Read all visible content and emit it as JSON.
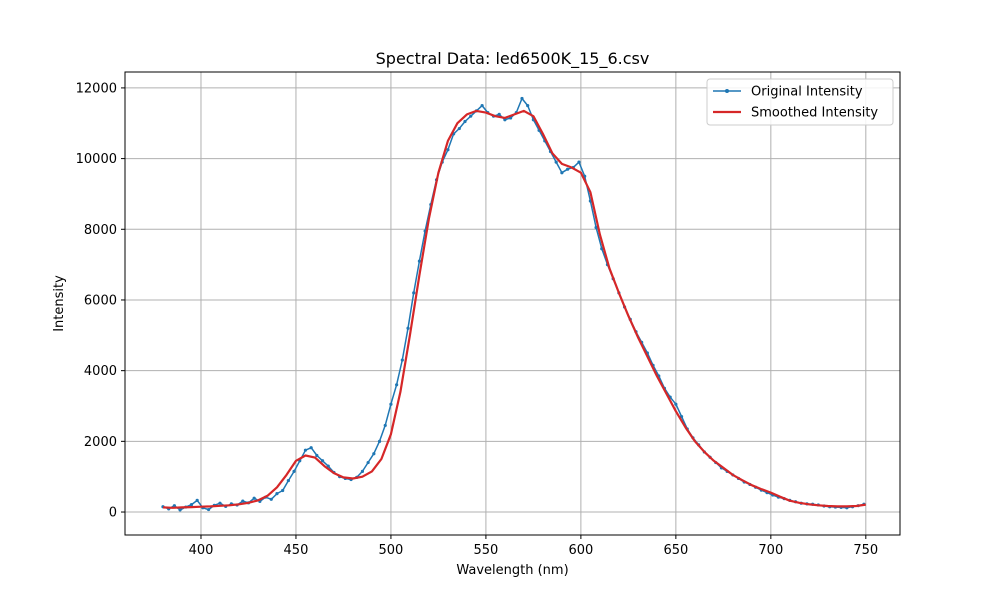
{
  "chart_data": {
    "type": "line",
    "title": "Spectral Data: led6500K_15_6.csv",
    "xlabel": "Wavelength (nm)",
    "ylabel": "Intensity",
    "xlim": [
      360,
      768
    ],
    "ylim": [
      -650,
      12450
    ],
    "xticks": [
      400,
      450,
      500,
      550,
      600,
      650,
      700,
      750
    ],
    "yticks": [
      0,
      2000,
      4000,
      6000,
      8000,
      10000,
      12000
    ],
    "grid": true,
    "legend_position": "top-right",
    "series": [
      {
        "name": "Original Intensity",
        "color": "#1f77b4",
        "style": "line-with-markers",
        "x": [
          380,
          383,
          386,
          389,
          392,
          395,
          398,
          401,
          404,
          407,
          410,
          413,
          416,
          419,
          422,
          425,
          428,
          431,
          434,
          437,
          440,
          443,
          446,
          449,
          452,
          455,
          458,
          461,
          464,
          467,
          470,
          473,
          476,
          479,
          482,
          485,
          488,
          491,
          494,
          497,
          500,
          503,
          506,
          509,
          512,
          515,
          518,
          521,
          524,
          527,
          530,
          533,
          536,
          539,
          542,
          545,
          548,
          551,
          554,
          557,
          560,
          563,
          566,
          569,
          572,
          575,
          578,
          581,
          584,
          587,
          590,
          593,
          596,
          599,
          602,
          605,
          608,
          611,
          614,
          617,
          620,
          623,
          626,
          629,
          632,
          635,
          638,
          641,
          644,
          647,
          650,
          653,
          656,
          659,
          662,
          665,
          668,
          671,
          674,
          677,
          680,
          683,
          686,
          689,
          692,
          695,
          698,
          701,
          704,
          707,
          710,
          713,
          716,
          719,
          722,
          725,
          728,
          731,
          734,
          737,
          740,
          743,
          746,
          749
        ],
        "y": [
          150,
          90,
          180,
          60,
          140,
          210,
          330,
          120,
          70,
          190,
          250,
          160,
          230,
          200,
          310,
          260,
          390,
          300,
          420,
          360,
          520,
          610,
          890,
          1150,
          1450,
          1750,
          1820,
          1600,
          1450,
          1300,
          1120,
          1000,
          950,
          920,
          980,
          1150,
          1400,
          1650,
          2000,
          2450,
          3050,
          3600,
          4300,
          5200,
          6200,
          7100,
          7950,
          8700,
          9400,
          9900,
          10250,
          10700,
          10850,
          11050,
          11200,
          11350,
          11500,
          11300,
          11200,
          11250,
          11100,
          11150,
          11300,
          11700,
          11500,
          11100,
          10800,
          10500,
          10200,
          9900,
          9600,
          9700,
          9750,
          9900,
          9500,
          8800,
          8050,
          7450,
          7000,
          6600,
          6200,
          5800,
          5450,
          5100,
          4800,
          4500,
          4150,
          3850,
          3500,
          3250,
          3050,
          2700,
          2350,
          2100,
          1900,
          1700,
          1550,
          1400,
          1250,
          1150,
          1050,
          950,
          850,
          780,
          700,
          620,
          550,
          480,
          420,
          380,
          330,
          290,
          250,
          230,
          220,
          200,
          170,
          150,
          140,
          130,
          120,
          150,
          180,
          220
        ]
      },
      {
        "name": "Smoothed Intensity",
        "color": "#d62728",
        "style": "line",
        "x": [
          380,
          385,
          390,
          395,
          400,
          405,
          410,
          415,
          420,
          425,
          430,
          435,
          440,
          445,
          450,
          455,
          460,
          465,
          470,
          475,
          480,
          485,
          490,
          495,
          500,
          505,
          510,
          515,
          520,
          525,
          530,
          535,
          540,
          545,
          550,
          555,
          560,
          565,
          570,
          575,
          580,
          585,
          590,
          595,
          600,
          605,
          610,
          615,
          620,
          625,
          630,
          635,
          640,
          645,
          650,
          655,
          660,
          665,
          670,
          675,
          680,
          685,
          690,
          695,
          700,
          705,
          710,
          715,
          720,
          725,
          730,
          735,
          740,
          745,
          750
        ],
        "y": [
          130,
          120,
          130,
          140,
          150,
          160,
          175,
          190,
          220,
          260,
          330,
          460,
          700,
          1050,
          1450,
          1600,
          1540,
          1300,
          1100,
          980,
          950,
          1000,
          1150,
          1500,
          2200,
          3400,
          5000,
          6700,
          8300,
          9600,
          10500,
          11000,
          11250,
          11350,
          11300,
          11200,
          11150,
          11250,
          11350,
          11200,
          10700,
          10150,
          9850,
          9750,
          9600,
          9050,
          7850,
          6900,
          6200,
          5550,
          4950,
          4400,
          3850,
          3350,
          2850,
          2400,
          2000,
          1700,
          1450,
          1250,
          1050,
          900,
          760,
          650,
          550,
          430,
          320,
          260,
          220,
          190,
          170,
          160,
          160,
          170,
          210
        ]
      }
    ]
  }
}
